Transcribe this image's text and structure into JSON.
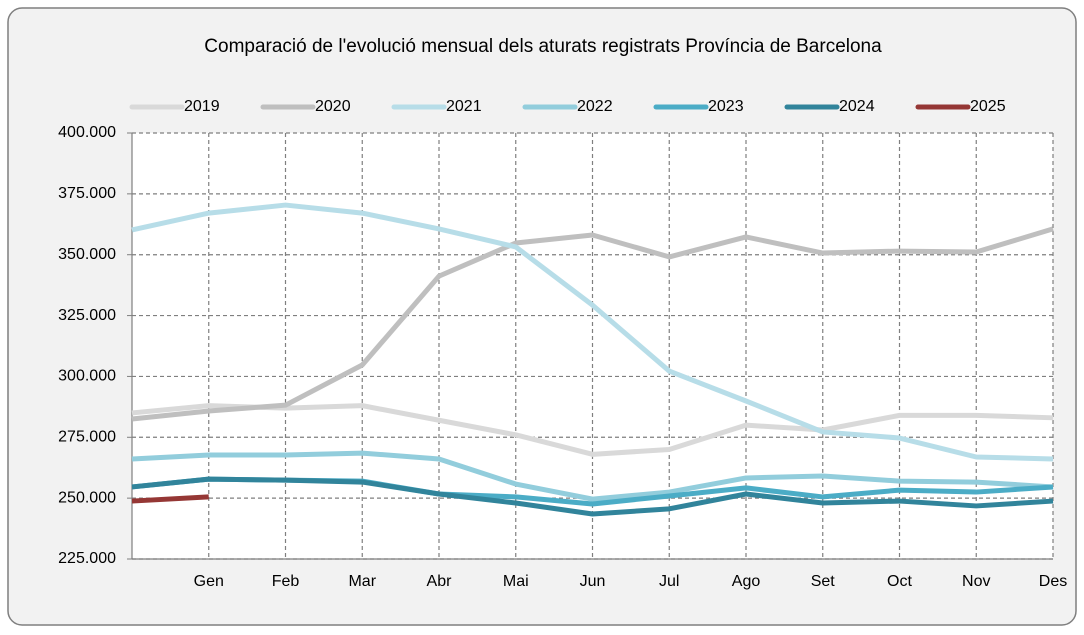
{
  "chart_data": {
    "type": "line",
    "title": "Comparació de l'evolució mensual dels aturats registrats Província de Barcelona",
    "categories": [
      null,
      "Gen",
      "Feb",
      "Mar",
      "Abr",
      "Mai",
      "Jun",
      "Jul",
      "Ago",
      "Set",
      "Oct",
      "Nov",
      "Des"
    ],
    "series": [
      {
        "name": "2019",
        "color": "#d9d9d9",
        "values": [
          285000,
          288000,
          287000,
          288000,
          282000,
          276000,
          268000,
          270000,
          280000,
          278000,
          284000,
          284000,
          283000
        ]
      },
      {
        "name": "2020",
        "color": "#bfbfbf",
        "values": [
          282500,
          285800,
          288200,
          304700,
          341200,
          354800,
          358100,
          349100,
          357300,
          350700,
          351500,
          351100,
          360600
        ]
      },
      {
        "name": "2021",
        "color": "#b7dde8",
        "values": [
          360200,
          367100,
          370400,
          367100,
          360600,
          353200,
          329300,
          302200,
          289900,
          277200,
          274700,
          266900,
          266100
        ]
      },
      {
        "name": "2022",
        "color": "#92cddc",
        "values": [
          266100,
          267700,
          267700,
          268500,
          266100,
          255800,
          249600,
          252500,
          258300,
          259100,
          257000,
          256600,
          254600
        ]
      },
      {
        "name": "2023",
        "color": "#4bacc6",
        "values": [
          254600,
          257800,
          257400,
          257000,
          251700,
          250500,
          247600,
          250900,
          254200,
          250500,
          253300,
          252500,
          254600
        ]
      },
      {
        "name": "2024",
        "color": "#31849b",
        "values": [
          254600,
          257800,
          257400,
          256600,
          251700,
          248000,
          243500,
          245600,
          251700,
          248000,
          248800,
          246800,
          248800
        ]
      },
      {
        "name": "2025",
        "color": "#953735",
        "values": [
          248800,
          250500,
          null,
          null,
          null,
          null,
          null,
          null,
          null,
          null,
          null,
          null,
          null
        ]
      }
    ],
    "ylim": [
      225000,
      400000
    ],
    "yticks": [
      {
        "value": 225000,
        "label": "225.000"
      },
      {
        "value": 250000,
        "label": "250.000"
      },
      {
        "value": 275000,
        "label": "275.000"
      },
      {
        "value": 300000,
        "label": "300.000"
      },
      {
        "value": 325000,
        "label": "325.000"
      },
      {
        "value": 350000,
        "label": "350.000"
      },
      {
        "value": 375000,
        "label": "375.000"
      },
      {
        "value": 400000,
        "label": "400.000"
      }
    ],
    "grid": true,
    "legend": "top"
  }
}
